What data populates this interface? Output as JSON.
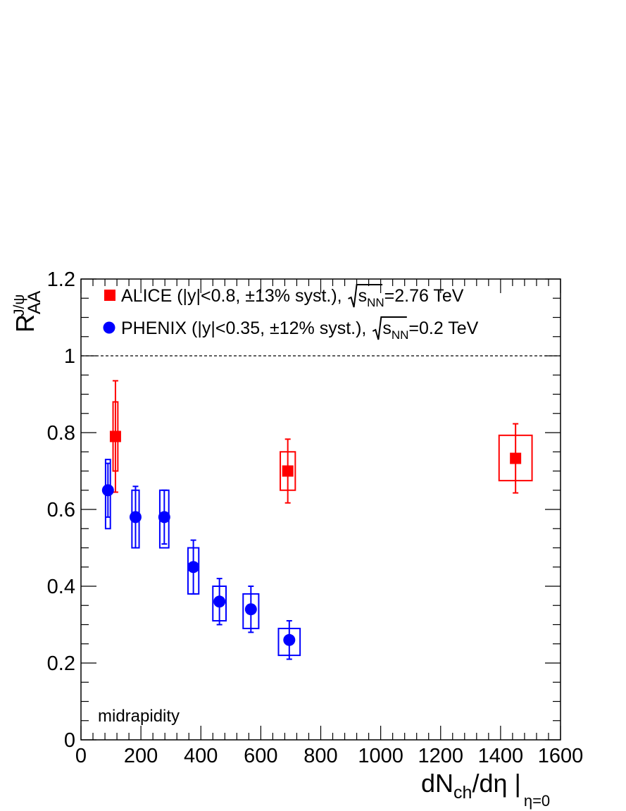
{
  "chart_data": {
    "type": "scatter",
    "x_axis": {
      "title": "dN",
      "title_sub": "ch",
      "title_tail": "/dη |",
      "title_cond": "η=0",
      "lim": [
        0,
        1600
      ],
      "ticks": [
        0,
        200,
        400,
        600,
        800,
        1000,
        1200,
        1400,
        1600
      ]
    },
    "y_axis": {
      "title": "R",
      "title_sub": "AA",
      "title_sup": "J/ψ",
      "lim": [
        0,
        1.2
      ],
      "ticks": [
        0,
        0.2,
        0.4,
        0.6,
        0.8,
        1,
        1.2
      ]
    },
    "reference_line": {
      "y": 1,
      "style": "dashed"
    },
    "annotation": "midrapidity",
    "legend_placement": "top-left",
    "series": [
      {
        "name": "ALICE (|y|<0.8, ±13% syst.), ",
        "sqrt_label": "s",
        "sqrt_sub": "NN",
        "energy": "=2.76 TeV",
        "color": "#ff0000",
        "marker": "square",
        "points": [
          {
            "x": 115,
            "y": 0.79,
            "stat": 0.145,
            "syst_hi": 0.09,
            "syst_lo": 0.09,
            "box_halfwidth": 8
          },
          {
            "x": 690,
            "y": 0.7,
            "stat": 0.083,
            "syst_hi": 0.05,
            "syst_lo": 0.05,
            "box_halfwidth": 25
          },
          {
            "x": 1450,
            "y": 0.733,
            "stat": 0.09,
            "syst_hi": 0.06,
            "syst_lo": 0.058,
            "box_halfwidth": 55
          }
        ]
      },
      {
        "name": "PHENIX (|y|<0.35, ±12% syst.), ",
        "sqrt_label": "s",
        "sqrt_sub": "NN",
        "energy": "=0.2 TeV",
        "color": "#0000ff",
        "marker": "circle",
        "points": [
          {
            "x": 90,
            "y": 0.65,
            "stat": 0.07,
            "syst_hi": 0.08,
            "syst_lo": 0.1,
            "box_halfwidth": 8
          },
          {
            "x": 182,
            "y": 0.58,
            "stat": 0.08,
            "syst_hi": 0.07,
            "syst_lo": 0.08,
            "box_halfwidth": 12
          },
          {
            "x": 278,
            "y": 0.58,
            "stat": 0.07,
            "syst_hi": 0.07,
            "syst_lo": 0.08,
            "box_halfwidth": 15
          },
          {
            "x": 375,
            "y": 0.45,
            "stat": 0.07,
            "syst_hi": 0.05,
            "syst_lo": 0.07,
            "box_halfwidth": 18
          },
          {
            "x": 462,
            "y": 0.36,
            "stat": 0.06,
            "syst_hi": 0.04,
            "syst_lo": 0.05,
            "box_halfwidth": 22
          },
          {
            "x": 567,
            "y": 0.34,
            "stat": 0.06,
            "syst_hi": 0.04,
            "syst_lo": 0.05,
            "box_halfwidth": 26
          },
          {
            "x": 695,
            "y": 0.26,
            "stat": 0.05,
            "syst_hi": 0.03,
            "syst_lo": 0.04,
            "box_halfwidth": 36
          }
        ]
      }
    ]
  }
}
